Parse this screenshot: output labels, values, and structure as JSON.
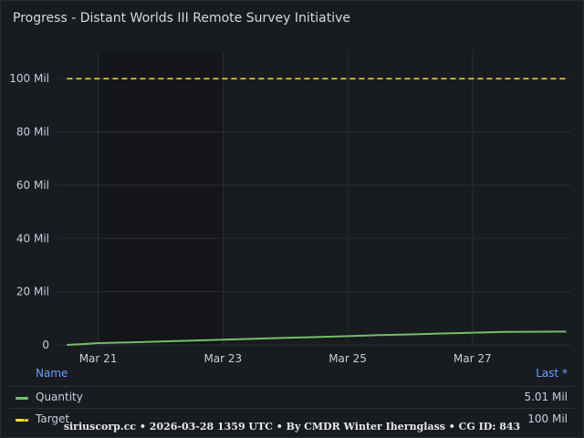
{
  "panel": {
    "title": "Progress - Distant Worlds III Remote Survey Initiative"
  },
  "chart_data": {
    "type": "line",
    "title": "Progress - Distant Worlds III Remote Survey Initiative",
    "xlabel": "",
    "ylabel": "",
    "ylim": [
      0,
      110000000
    ],
    "xlim": [
      "2026-03-20T08:00",
      "2026-03-28T13:59"
    ],
    "y_ticks": [
      {
        "value": 0,
        "label": "0"
      },
      {
        "value": 20000000,
        "label": "20 Mil"
      },
      {
        "value": 40000000,
        "label": "40 Mil"
      },
      {
        "value": 60000000,
        "label": "60 Mil"
      },
      {
        "value": 80000000,
        "label": "80 Mil"
      },
      {
        "value": 100000000,
        "label": "100 Mil"
      }
    ],
    "x_ticks": [
      {
        "value": "2026-03-21T00:00",
        "label": "Mar 21"
      },
      {
        "value": "2026-03-23T00:00",
        "label": "Mar 23"
      },
      {
        "value": "2026-03-25T00:00",
        "label": "Mar 25"
      },
      {
        "value": "2026-03-27T00:00",
        "label": "Mar 27"
      }
    ],
    "highlight_region": [
      "2026-03-21T00:00",
      "2026-03-23T00:00"
    ],
    "grid": true,
    "legend": "bottom",
    "series": [
      {
        "name": "Quantity",
        "color": "#73bf69",
        "style": "solid",
        "points": [
          [
            "2026-03-20T12:00",
            0
          ],
          [
            "2026-03-20T18:00",
            300000
          ],
          [
            "2026-03-21T00:00",
            700000
          ],
          [
            "2026-03-21T12:00",
            950000
          ],
          [
            "2026-03-22T00:00",
            1300000
          ],
          [
            "2026-03-22T12:00",
            1600000
          ],
          [
            "2026-03-23T00:00",
            2000000
          ],
          [
            "2026-03-23T12:00",
            2300000
          ],
          [
            "2026-03-24T00:00",
            2650000
          ],
          [
            "2026-03-24T12:00",
            2950000
          ],
          [
            "2026-03-25T00:00",
            3300000
          ],
          [
            "2026-03-25T12:00",
            3650000
          ],
          [
            "2026-03-26T00:00",
            3950000
          ],
          [
            "2026-03-26T12:00",
            4300000
          ],
          [
            "2026-03-27T00:00",
            4600000
          ],
          [
            "2026-03-27T12:00",
            4900000
          ],
          [
            "2026-03-28T12:00",
            5010000
          ]
        ]
      },
      {
        "name": "Target",
        "color": "#fade2a",
        "style": "dashed",
        "points": [
          [
            "2026-03-20T12:00",
            100000000
          ],
          [
            "2026-03-28T12:00",
            100000000
          ]
        ]
      }
    ]
  },
  "legend": {
    "name_header": "Name",
    "last_header": "Last *",
    "rows": [
      {
        "name": "Quantity",
        "last": "5.01 Mil",
        "color": "#73bf69"
      },
      {
        "name": "Target",
        "last": "100 Mil",
        "color": "#fade2a"
      }
    ]
  },
  "footer": {
    "text": "siriuscorp.cc • 2026-03-28 1359 UTC • By CMDR Winter Ihernglass • CG ID: 843"
  }
}
